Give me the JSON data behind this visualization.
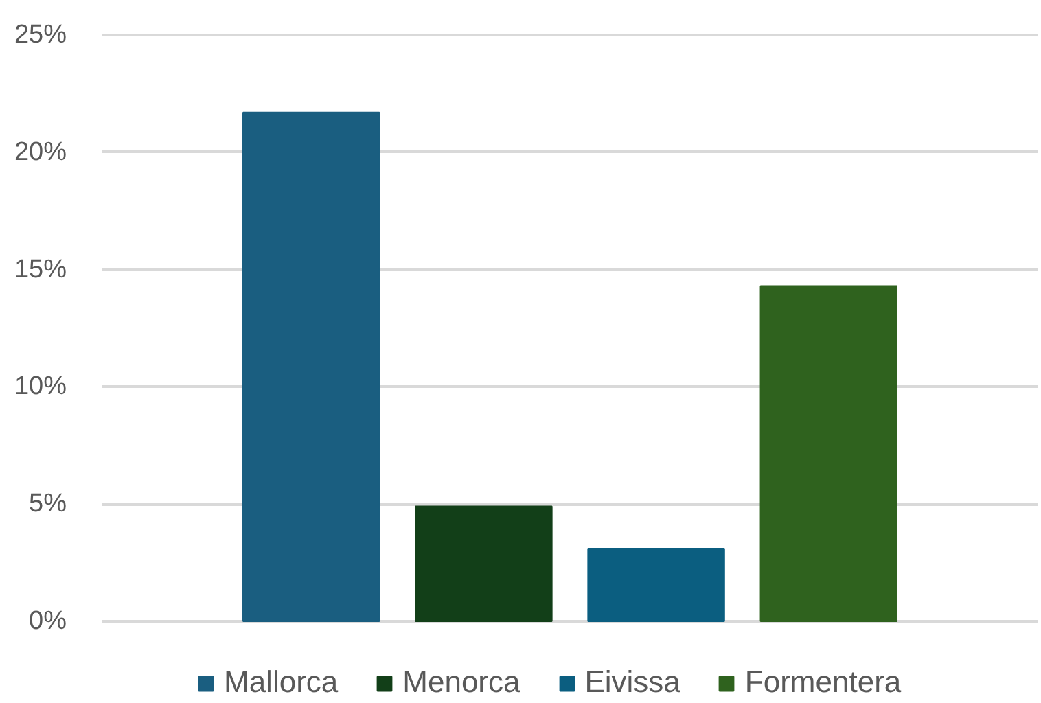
{
  "chart_data": {
    "type": "bar",
    "categories": [
      null
    ],
    "series": [
      {
        "name": "Mallorca",
        "color": "#1a5e80",
        "values": [
          21.7
        ]
      },
      {
        "name": "Menorca",
        "color": "#123f18",
        "values": [
          4.9
        ]
      },
      {
        "name": "Eivissa",
        "color": "#0b5e80",
        "values": [
          3.1
        ]
      },
      {
        "name": "Formentera",
        "color": "#2f621e",
        "values": [
          14.3
        ]
      }
    ],
    "ylim": [
      0,
      25
    ],
    "yticks": [
      {
        "value": 0,
        "label": "0%"
      },
      {
        "value": 5,
        "label": "5%"
      },
      {
        "value": 10,
        "label": "10%"
      },
      {
        "value": 15,
        "label": "15%"
      },
      {
        "value": 20,
        "label": "20%"
      },
      {
        "value": 25,
        "label": "25%"
      }
    ],
    "grid": "y",
    "legend": "bottom",
    "tick_labels": "y"
  }
}
